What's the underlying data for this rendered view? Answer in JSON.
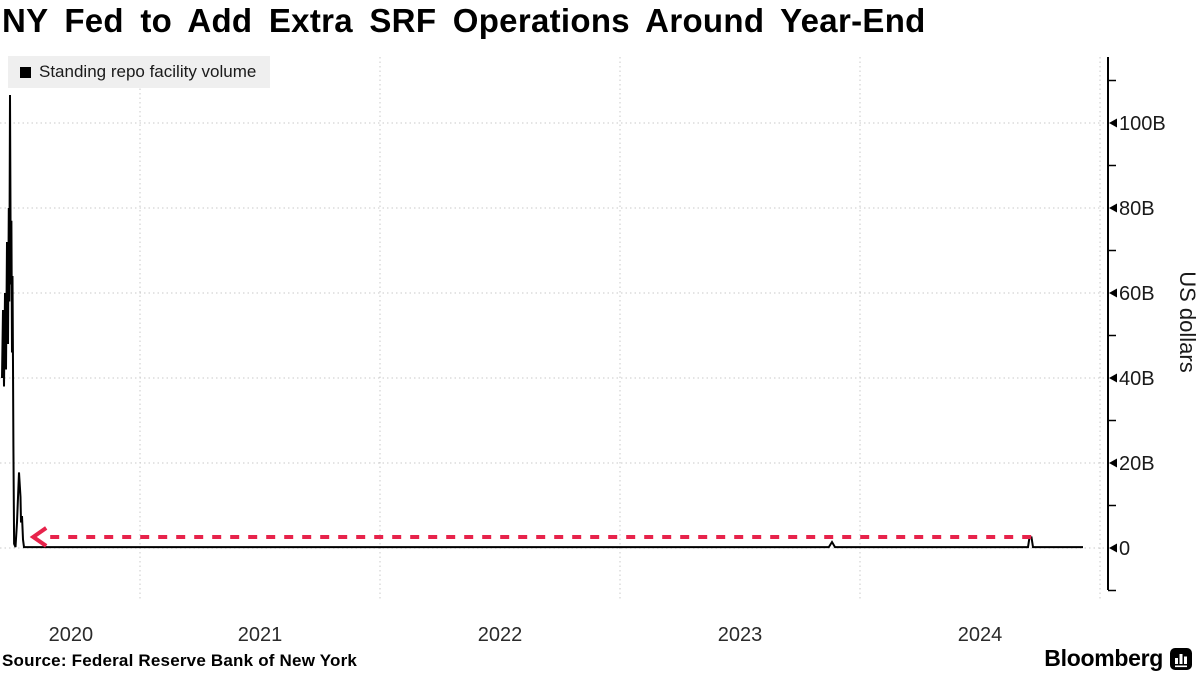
{
  "title": "NY Fed to Add Extra SRF Operations Around Year-End",
  "legend": {
    "marker_color": "#000000",
    "label": "Standing repo facility volume",
    "background": "#efefef"
  },
  "source_note": "Source: Federal Reserve Bank of New York",
  "branding": {
    "name": "Bloomberg",
    "icon": "bar-chart-icon"
  },
  "chart_data": {
    "type": "line",
    "title": "NY Fed to Add Extra SRF Operations Around Year-End",
    "ylabel": "US dollars",
    "unit": "billions of US dollars",
    "grid": true,
    "legend_position": "top-left",
    "colors": {
      "series": "#000000",
      "annotation": "#e7234b",
      "gridline": "#c9c9c9",
      "axis": "#000000"
    },
    "y_axis": {
      "side": "right",
      "range_billions": [
        -10,
        115
      ],
      "major_ticks": [
        {
          "value": 0,
          "label": "0"
        },
        {
          "value": 20,
          "label": "20B"
        },
        {
          "value": 40,
          "label": "40B"
        },
        {
          "value": 60,
          "label": "60B"
        },
        {
          "value": 80,
          "label": "80B"
        },
        {
          "value": 100,
          "label": "100B"
        }
      ],
      "minor_tick_values": [
        110,
        90,
        70,
        50,
        30,
        10,
        -10
      ]
    },
    "x_axis": {
      "start_year_decimal": 2020.425,
      "end_year_decimal": 2025.03,
      "gridline_years": [
        2021,
        2022,
        2023,
        2024,
        2025
      ],
      "labels": [
        {
          "text": "2020",
          "position": 2020.712
        },
        {
          "text": "2021",
          "position": 2021.5
        },
        {
          "text": "2022",
          "position": 2022.5
        },
        {
          "text": "2023",
          "position": 2023.5
        },
        {
          "text": "2024",
          "position": 2024.5
        }
      ]
    },
    "series": [
      {
        "name": "Standing repo facility volume",
        "color": "#000000",
        "points_year_value_billions": [
          [
            2020.425,
            40
          ],
          [
            2020.4292,
            56
          ],
          [
            2020.4333,
            38
          ],
          [
            2020.4375,
            60
          ],
          [
            2020.4417,
            42
          ],
          [
            2020.4458,
            72
          ],
          [
            2020.45,
            48
          ],
          [
            2020.4533,
            80
          ],
          [
            2020.4554,
            58
          ],
          [
            2020.4583,
            106.6
          ],
          [
            2020.4617,
            62
          ],
          [
            2020.4642,
            77
          ],
          [
            2020.4667,
            46
          ],
          [
            2020.4688,
            64
          ],
          [
            2020.4708,
            43
          ],
          [
            2020.4725,
            24
          ],
          [
            2020.4754,
            1
          ],
          [
            2020.4813,
            0.2
          ],
          [
            2020.4875,
            6
          ],
          [
            2020.4958,
            17.8
          ],
          [
            2020.5021,
            12
          ],
          [
            2020.5042,
            6
          ],
          [
            2020.5083,
            7.5
          ],
          [
            2020.5125,
            2
          ],
          [
            2020.5167,
            0.2
          ],
          [
            2021.5,
            0.2
          ],
          [
            2023.87,
            0.2
          ],
          [
            2023.8833,
            1.4
          ],
          [
            2023.8958,
            0.2
          ],
          [
            2024.7,
            0.2
          ],
          [
            2024.7063,
            2.5
          ],
          [
            2024.7146,
            2.5
          ],
          [
            2024.7208,
            0.2
          ],
          [
            2024.9292,
            0.2
          ]
        ]
      }
    ],
    "annotation": {
      "type": "dashed_arrow_left",
      "color": "#e7234b",
      "value_billions": 2.6,
      "from_year": 2024.717,
      "to_year": 2020.555
    }
  }
}
